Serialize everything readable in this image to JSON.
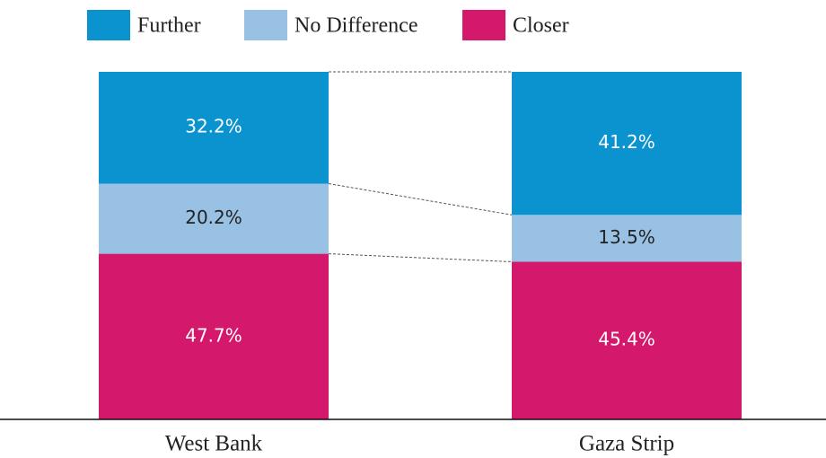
{
  "chart_data": {
    "type": "stacked_bar",
    "categories": [
      "West Bank",
      "Gaza Strip"
    ],
    "series": [
      {
        "name": "Further",
        "color": "#0a93cf",
        "values": [
          32.2,
          41.2
        ],
        "value_labels": [
          "32.2%",
          "41.2%"
        ]
      },
      {
        "name": "No Difference",
        "color": "#98c1e4",
        "values": [
          20.2,
          13.5
        ],
        "value_labels": [
          "20.2%",
          "13.5%"
        ]
      },
      {
        "name": "Closer",
        "color": "#d4186c",
        "values": [
          47.7,
          45.4
        ],
        "value_labels": [
          "47.7%",
          "45.4%"
        ]
      }
    ]
  }
}
